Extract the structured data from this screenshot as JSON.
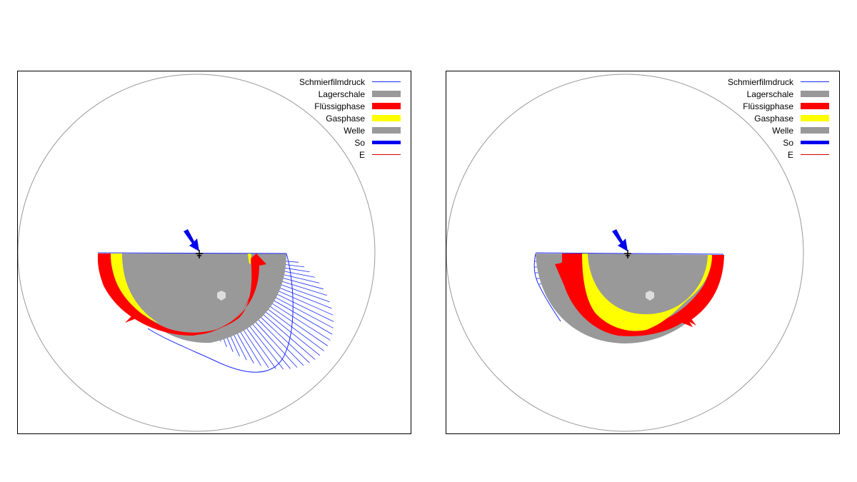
{
  "legend": [
    {
      "label": "Schmierfilmdruck",
      "kind": "line",
      "color": "#1a2aff",
      "weight": 1
    },
    {
      "label": "Lagerschale",
      "kind": "bar",
      "color": "#999999"
    },
    {
      "label": "Flüssigphase",
      "kind": "bar",
      "color": "#ff0000"
    },
    {
      "label": "Gasphase",
      "kind": "bar",
      "color": "#ffff00"
    },
    {
      "label": "Welle",
      "kind": "bar",
      "color": "#999999"
    },
    {
      "label": "So",
      "kind": "line",
      "color": "#0000ee",
      "weight": 5
    },
    {
      "label": "E",
      "kind": "line",
      "color": "#cc0000",
      "weight": 1
    }
  ],
  "colors": {
    "pressure": "#1a2aff",
    "shell": "#999999",
    "liquid": "#ff0000",
    "gas": "#ffff00",
    "shaft": "#999999",
    "arrow": "#0000ee",
    "outline": "#999999"
  }
}
